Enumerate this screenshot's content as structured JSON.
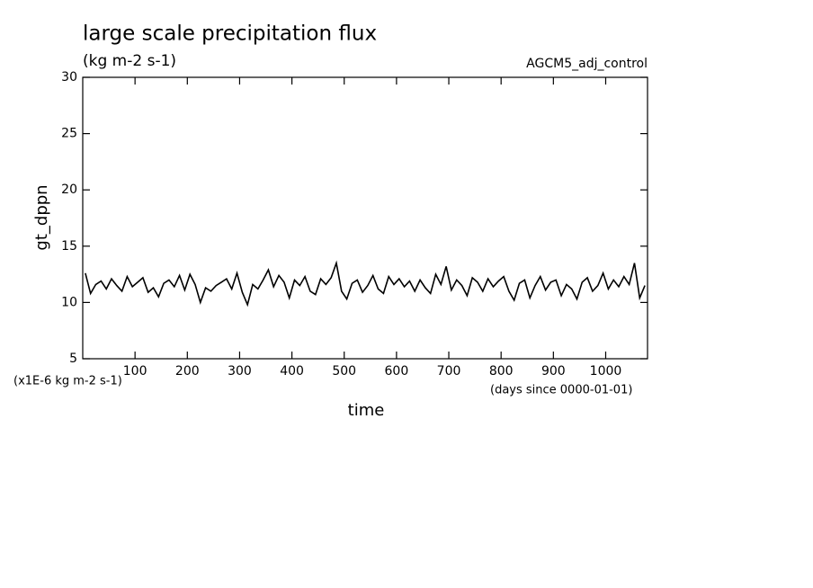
{
  "chart_data": {
    "type": "line",
    "title": "large scale precipitation flux",
    "subtitle": "(kg m-2 s-1)",
    "annotation": "AGCM5_adj_control",
    "y_label": "gt_dppn",
    "x_label": "time",
    "y_units": "(x1E-6 kg m-2 s-1)",
    "x_units": "(days since 0000-01-01)",
    "xlim": [
      0,
      1080
    ],
    "ylim": [
      5,
      30
    ],
    "xticks": [
      100,
      200,
      300,
      400,
      500,
      600,
      700,
      800,
      900,
      1000
    ],
    "yticks": [
      5,
      10,
      15,
      20,
      25,
      30
    ],
    "x": [
      5,
      15,
      25,
      35,
      45,
      55,
      65,
      75,
      85,
      95,
      105,
      115,
      125,
      135,
      145,
      155,
      165,
      175,
      185,
      195,
      205,
      215,
      225,
      235,
      245,
      255,
      265,
      275,
      285,
      295,
      305,
      315,
      325,
      335,
      345,
      355,
      365,
      375,
      385,
      395,
      405,
      415,
      425,
      435,
      445,
      455,
      465,
      475,
      485,
      495,
      505,
      515,
      525,
      535,
      545,
      555,
      565,
      575,
      585,
      595,
      605,
      615,
      625,
      635,
      645,
      655,
      665,
      675,
      685,
      695,
      705,
      715,
      725,
      735,
      745,
      755,
      765,
      775,
      785,
      795,
      805,
      815,
      825,
      835,
      845,
      855,
      865,
      875,
      885,
      895,
      905,
      915,
      925,
      935,
      945,
      955,
      965,
      975,
      985,
      995,
      1005,
      1015,
      1025,
      1035,
      1045,
      1055,
      1065,
      1075
    ],
    "series": [
      {
        "color": "#000000",
        "values": [
          12.6,
          10.8,
          11.6,
          11.9,
          11.2,
          12.1,
          11.5,
          11.0,
          12.3,
          11.4,
          11.8,
          12.2,
          10.9,
          11.3,
          10.5,
          11.7,
          12.0,
          11.4,
          12.4,
          11.1,
          12.5,
          11.6,
          10.0,
          11.3,
          11.0,
          11.5,
          11.8,
          12.1,
          11.2,
          12.6,
          10.9,
          9.8,
          11.6,
          11.2,
          12.0,
          12.9,
          11.4,
          12.4,
          11.8,
          10.4,
          12.0,
          11.5,
          12.3,
          11.0,
          10.7,
          12.1,
          11.6,
          12.2,
          13.5,
          11.0,
          10.3,
          11.7,
          12.0,
          10.9,
          11.5,
          12.4,
          11.2,
          10.8,
          12.3,
          11.6,
          12.1,
          11.4,
          11.9,
          11.0,
          12.0,
          11.3,
          10.8,
          12.5,
          11.6,
          13.2,
          11.1,
          12.0,
          11.5,
          10.6,
          12.2,
          11.8,
          11.0,
          12.1,
          11.4,
          11.9,
          12.3,
          11.0,
          10.2,
          11.7,
          12.0,
          10.4,
          11.5,
          12.3,
          11.1,
          11.8,
          12.0,
          10.6,
          11.6,
          11.2,
          10.3,
          11.8,
          12.2,
          11.0,
          11.5,
          12.6,
          11.2,
          12.0,
          11.4,
          12.3,
          11.6,
          13.5,
          10.4,
          11.5
        ]
      }
    ]
  }
}
